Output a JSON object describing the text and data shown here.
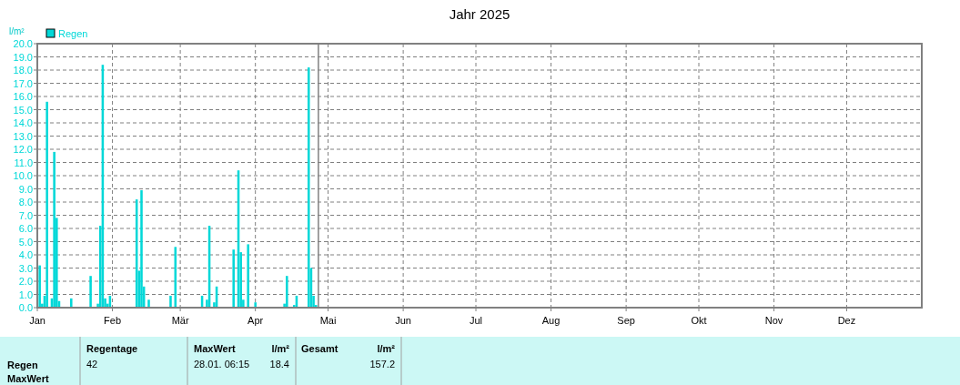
{
  "chart_data": {
    "type": "bar",
    "title": "Jahr 2025",
    "ylabel": "l/m²",
    "x": [
      "2025-01-02",
      "2025-01-03",
      "2025-01-04",
      "2025-01-05",
      "2025-01-07",
      "2025-01-08",
      "2025-01-09",
      "2025-01-10",
      "2025-01-15",
      "2025-01-23",
      "2025-01-26",
      "2025-01-27",
      "2025-01-28",
      "2025-01-29",
      "2025-01-30",
      "2025-01-31",
      "2025-02-11",
      "2025-02-12",
      "2025-02-13",
      "2025-02-14",
      "2025-02-16",
      "2025-02-25",
      "2025-02-27",
      "2025-03-10",
      "2025-03-12",
      "2025-03-13",
      "2025-03-15",
      "2025-03-16",
      "2025-03-23",
      "2025-03-25",
      "2025-03-26",
      "2025-03-27",
      "2025-03-29",
      "2025-04-01",
      "2025-04-13",
      "2025-04-14",
      "2025-04-17",
      "2025-04-18",
      "2025-04-23",
      "2025-04-24",
      "2025-04-25",
      "2025-04-26"
    ],
    "series": [
      {
        "name": "Regen",
        "color": "#00d8d8",
        "values": [
          3.2,
          0.3,
          0.9,
          15.6,
          0.7,
          11.8,
          6.8,
          0.5,
          0.7,
          2.4,
          0.3,
          6.2,
          18.4,
          0.7,
          0.3,
          0.9,
          8.2,
          2.8,
          8.9,
          1.6,
          0.6,
          0.9,
          4.6,
          0.9,
          0.6,
          6.2,
          0.4,
          1.6,
          4.4,
          10.4,
          4.2,
          0.6,
          4.8,
          0.4,
          0.3,
          2.4,
          0.2,
          0.9,
          18.2,
          3.0,
          0.9,
          0.2
        ]
      }
    ],
    "xlim": [
      "2025-01-01",
      "2026-01-01"
    ],
    "xticks": [
      {
        "value": "2025-01-01",
        "label": "Jan"
      },
      {
        "value": "2025-02-01",
        "label": "Feb"
      },
      {
        "value": "2025-03-01",
        "label": "Mär"
      },
      {
        "value": "2025-04-01",
        "label": "Apr"
      },
      {
        "value": "2025-05-01",
        "label": "Mai"
      },
      {
        "value": "2025-06-01",
        "label": "Jun"
      },
      {
        "value": "2025-07-01",
        "label": "Jul"
      },
      {
        "value": "2025-08-01",
        "label": "Aug"
      },
      {
        "value": "2025-09-01",
        "label": "Sep"
      },
      {
        "value": "2025-10-01",
        "label": "Okt"
      },
      {
        "value": "2025-11-01",
        "label": "Nov"
      },
      {
        "value": "2025-12-01",
        "label": "Dez"
      }
    ],
    "ylim": [
      0,
      20
    ],
    "yticks": [
      {
        "value": 0,
        "label": "0.0"
      },
      {
        "value": 1,
        "label": "1.0"
      },
      {
        "value": 2,
        "label": "2.0"
      },
      {
        "value": 3,
        "label": "3.0"
      },
      {
        "value": 4,
        "label": "4.0"
      },
      {
        "value": 5,
        "label": "5.0"
      },
      {
        "value": 6,
        "label": "6.0"
      },
      {
        "value": 7,
        "label": "7.0"
      },
      {
        "value": 8,
        "label": "8.0"
      },
      {
        "value": 9,
        "label": "9.0"
      },
      {
        "value": 10,
        "label": "10.0"
      },
      {
        "value": 11,
        "label": "11.0"
      },
      {
        "value": 12,
        "label": "12.0"
      },
      {
        "value": 13,
        "label": "13.0"
      },
      {
        "value": 14,
        "label": "14.0"
      },
      {
        "value": 15,
        "label": "15.0"
      },
      {
        "value": 16,
        "label": "16.0"
      },
      {
        "value": 17,
        "label": "17.0"
      },
      {
        "value": 18,
        "label": "18.0"
      },
      {
        "value": 19,
        "label": "19.0"
      },
      {
        "value": 20,
        "label": "20.0"
      }
    ],
    "grid": true,
    "legend": "top left",
    "ref_lines": [
      {
        "axis": "x",
        "value": "2025-04-27",
        "color": "#808080",
        "line_style": "solid"
      }
    ],
    "annotations": [
      "Regentage",
      "42",
      "MaxWert",
      "l/m²",
      "28.01.  06:15",
      "18.4",
      "Gesamt",
      "l/m²",
      "157.2",
      "Regen",
      "MaxWert"
    ]
  }
}
